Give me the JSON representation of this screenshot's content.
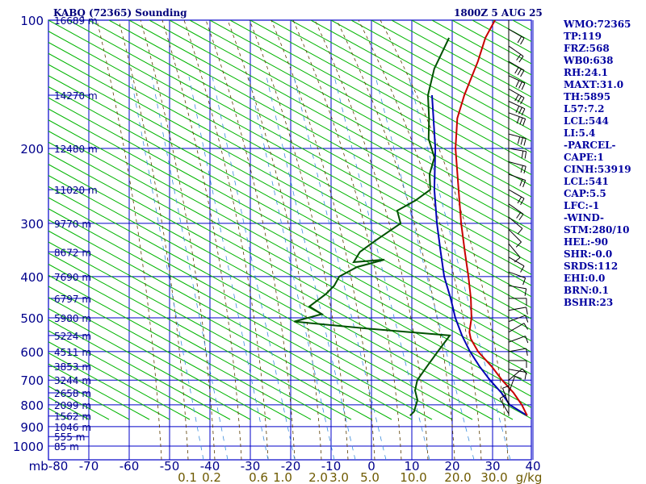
{
  "header": {
    "station": "KABQ (72365) Sounding",
    "time": "1800Z  5 AUG 25"
  },
  "indices": [
    "WMO:72365",
    "TP:119",
    "FRZ:568",
    "WB0:638",
    "RH:24.1",
    "MAXT:31.0",
    "TH:5895",
    "L57:7.2",
    "LCL:544",
    "LI:5.4",
    "-PARCEL-",
    "CAPE:1",
    "CINH:53919",
    "LCL:541",
    "CAP:5.5",
    "LFC:-1",
    "-WIND-",
    "STM:280/10",
    "HEL:-90",
    "SHR:-0.0",
    "SRDS:112",
    "EHI:0.0",
    "BRN:0.1",
    "BSHR:23"
  ],
  "colors": {
    "frame": "#0000c8",
    "dry_adiabat": "#00b400",
    "moist_adiabat": "#5a3c00",
    "mixing_ratio": "#3c8cdc",
    "temperature": "#c80000",
    "dewpoint": "#005000",
    "parcel": "#0000b4",
    "label": "#00008c",
    "mixing_label": "#6e5a00",
    "wind": "#000000"
  },
  "chart_data": {
    "type": "skew-t",
    "pressure_axis_unit": "mb",
    "pressure_levels": [
      100,
      200,
      300,
      400,
      500,
      600,
      700,
      800,
      900,
      1000
    ],
    "pressure_ticks": [
      "100",
      "200",
      "300",
      "400",
      "500",
      "600",
      "700",
      "800",
      "900",
      "1000"
    ],
    "temperature_ticks": [
      -80,
      -70,
      -60,
      -50,
      -40,
      -30,
      -20,
      -10,
      0,
      10,
      20,
      30,
      40
    ],
    "temperature_tick_labels": [
      "mb-80",
      "-70",
      "-60",
      "-50",
      "-40",
      "-30",
      "-20",
      "-10",
      "0",
      "10",
      "20",
      "30",
      "40"
    ],
    "mixing_ratio_values": [
      0.1,
      0.2,
      0.6,
      1.0,
      2.0,
      3.0,
      5.0,
      10.0,
      20.0,
      30.0
    ],
    "mixing_ratio_labels": [
      "0.1",
      "0.2",
      "0.6",
      "1.0",
      "2.0",
      "3.0",
      "5.0",
      "10.0",
      "20.0",
      "30.0",
      "g/kg"
    ],
    "height_labels": [
      {
        "p": 100,
        "label": "16689 m"
      },
      {
        "p": 150,
        "label": "14270 m"
      },
      {
        "p": 200,
        "label": "12480 m"
      },
      {
        "p": 250,
        "label": "11020 m"
      },
      {
        "p": 300,
        "label": "9770 m"
      },
      {
        "p": 350,
        "label": "8672 m"
      },
      {
        "p": 400,
        "label": "7690 m"
      },
      {
        "p": 450,
        "label": "6797 m"
      },
      {
        "p": 500,
        "label": "5980 m"
      },
      {
        "p": 550,
        "label": "5224 m"
      },
      {
        "p": 600,
        "label": "4511 m"
      },
      {
        "p": 650,
        "label": "3853 m"
      },
      {
        "p": 700,
        "label": "3244 m"
      },
      {
        "p": 750,
        "label": "2658 m"
      },
      {
        "p": 800,
        "label": "2099 m"
      },
      {
        "p": 850,
        "label": "1562 m"
      },
      {
        "p": 900,
        "label": "1046 m"
      },
      {
        "p": 950,
        "label": "555 m"
      },
      {
        "p": 1000,
        "label": "85 m"
      }
    ],
    "temperature_profile": [
      [
        848,
        31.0
      ],
      [
        800,
        27
      ],
      [
        750,
        22
      ],
      [
        700,
        16
      ],
      [
        650,
        10
      ],
      [
        600,
        3
      ],
      [
        560,
        -2
      ],
      [
        540,
        -4
      ],
      [
        500,
        -7
      ],
      [
        450,
        -12
      ],
      [
        400,
        -18
      ],
      [
        350,
        -25
      ],
      [
        300,
        -33
      ],
      [
        250,
        -42
      ],
      [
        200,
        -53
      ],
      [
        170,
        -60
      ],
      [
        150,
        -64
      ],
      [
        125,
        -69
      ],
      [
        110,
        -73
      ],
      [
        100,
        -75
      ]
    ],
    "dewpoint_profile": [
      [
        848,
        2
      ],
      [
        830,
        2
      ],
      [
        780,
        0
      ],
      [
        740,
        -3
      ],
      [
        700,
        -5
      ],
      [
        650,
        -6
      ],
      [
        600,
        -7
      ],
      [
        550,
        -8
      ],
      [
        530,
        -30
      ],
      [
        510,
        -50
      ],
      [
        490,
        -45
      ],
      [
        470,
        -50
      ],
      [
        440,
        -49
      ],
      [
        420,
        -49
      ],
      [
        400,
        -50
      ],
      [
        380,
        -48
      ],
      [
        365,
        -43
      ],
      [
        370,
        -50
      ],
      [
        350,
        -51
      ],
      [
        330,
        -50
      ],
      [
        300,
        -48
      ],
      [
        280,
        -52
      ],
      [
        265,
        -50
      ],
      [
        250,
        -49
      ],
      [
        230,
        -53
      ],
      [
        210,
        -56
      ],
      [
        190,
        -62
      ],
      [
        170,
        -67
      ],
      [
        150,
        -73
      ],
      [
        130,
        -78
      ],
      [
        110,
        -82
      ]
    ],
    "parcel_profile": [
      [
        848,
        31.0
      ],
      [
        800,
        24
      ],
      [
        750,
        19
      ],
      [
        700,
        13
      ],
      [
        650,
        7
      ],
      [
        600,
        1
      ],
      [
        550,
        -5
      ],
      [
        500,
        -11
      ],
      [
        450,
        -17
      ],
      [
        400,
        -24
      ],
      [
        350,
        -31
      ],
      [
        300,
        -39
      ],
      [
        250,
        -48
      ],
      [
        200,
        -58
      ],
      [
        150,
        -72
      ]
    ],
    "wind_barbs": [
      {
        "p": 105,
        "dir": 300,
        "spd": 15
      },
      {
        "p": 115,
        "dir": 305,
        "spd": 20
      },
      {
        "p": 125,
        "dir": 300,
        "spd": 25
      },
      {
        "p": 135,
        "dir": 295,
        "spd": 25
      },
      {
        "p": 145,
        "dir": 300,
        "spd": 30
      },
      {
        "p": 155,
        "dir": 295,
        "spd": 25
      },
      {
        "p": 165,
        "dir": 290,
        "spd": 25
      },
      {
        "p": 185,
        "dir": 285,
        "spd": 25
      },
      {
        "p": 200,
        "dir": 280,
        "spd": 20
      },
      {
        "p": 215,
        "dir": 285,
        "spd": 20
      },
      {
        "p": 230,
        "dir": 290,
        "spd": 15
      },
      {
        "p": 250,
        "dir": 300,
        "spd": 15
      },
      {
        "p": 270,
        "dir": 305,
        "spd": 15
      },
      {
        "p": 290,
        "dir": 310,
        "spd": 10
      },
      {
        "p": 310,
        "dir": 315,
        "spd": 10
      },
      {
        "p": 335,
        "dir": 320,
        "spd": 10
      },
      {
        "p": 360,
        "dir": 300,
        "spd": 10
      },
      {
        "p": 390,
        "dir": 290,
        "spd": 10
      },
      {
        "p": 420,
        "dir": 280,
        "spd": 10
      },
      {
        "p": 450,
        "dir": 270,
        "spd": 10
      },
      {
        "p": 480,
        "dir": 260,
        "spd": 10
      },
      {
        "p": 510,
        "dir": 250,
        "spd": 10
      },
      {
        "p": 540,
        "dir": 240,
        "spd": 10
      },
      {
        "p": 570,
        "dir": 250,
        "spd": 10
      },
      {
        "p": 600,
        "dir": 260,
        "spd": 10
      },
      {
        "p": 630,
        "dir": 270,
        "spd": 10
      },
      {
        "p": 660,
        "dir": 280,
        "spd": 10
      },
      {
        "p": 700,
        "dir": 230,
        "spd": 10
      },
      {
        "p": 750,
        "dir": 200,
        "spd": 5
      },
      {
        "p": 800,
        "dir": 160,
        "spd": 5
      },
      {
        "p": 840,
        "dir": 150,
        "spd": 5
      }
    ]
  }
}
